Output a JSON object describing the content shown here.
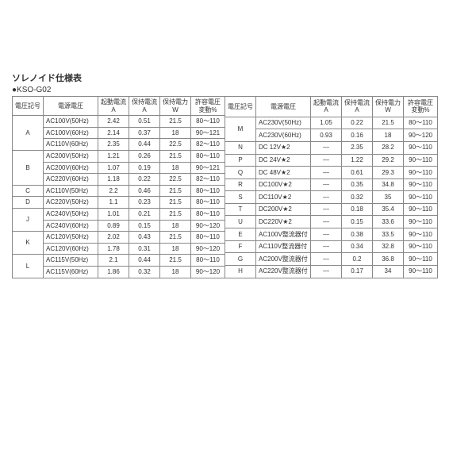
{
  "title": "ソレノイド仕様表",
  "subtitle": "●KSO-G02",
  "headers": {
    "sym": "電圧記号",
    "volt": "電源電圧",
    "start": "起動電流\nA",
    "hold": "保持電流\nA",
    "power": "保持電力\nW",
    "range": "許容電圧\n変動%"
  },
  "left": [
    {
      "sym": "A",
      "rows": [
        [
          "AC100V(50Hz)",
          "2.42",
          "0.51",
          "21.5",
          "80～110"
        ],
        [
          "AC100V(60Hz)",
          "2.14",
          "0.37",
          "18",
          "90～121"
        ],
        [
          "AC110V(60Hz)",
          "2.35",
          "0.44",
          "22.5",
          "82～110"
        ]
      ]
    },
    {
      "sym": "B",
      "rows": [
        [
          "AC200V(50Hz)",
          "1.21",
          "0.26",
          "21.5",
          "80～110"
        ],
        [
          "AC200V(60Hz)",
          "1.07",
          "0.19",
          "18",
          "90～121"
        ],
        [
          "AC220V(60Hz)",
          "1.18",
          "0.22",
          "22.5",
          "82～110"
        ]
      ]
    },
    {
      "sym": "C",
      "rows": [
        [
          "AC110V(50Hz)",
          "2.2",
          "0.46",
          "21.5",
          "80～110"
        ]
      ]
    },
    {
      "sym": "D",
      "rows": [
        [
          "AC220V(50Hz)",
          "1.1",
          "0.23",
          "21.5",
          "80～110"
        ]
      ]
    },
    {
      "sym": "J",
      "rows": [
        [
          "AC240V(50Hz)",
          "1.01",
          "0.21",
          "21.5",
          "80～110"
        ],
        [
          "AC240V(60Hz)",
          "0.89",
          "0.15",
          "18",
          "90～120"
        ]
      ]
    },
    {
      "sym": "K",
      "rows": [
        [
          "AC120V(50Hz)",
          "2.02",
          "0.43",
          "21.5",
          "80～110"
        ],
        [
          "AC120V(60Hz)",
          "1.78",
          "0.31",
          "18",
          "90～120"
        ]
      ]
    },
    {
      "sym": "L",
      "rows": [
        [
          "AC115V(50Hz)",
          "2.1",
          "0.44",
          "21.5",
          "80～110"
        ],
        [
          "AC115V(60Hz)",
          "1.86",
          "0.32",
          "18",
          "90～120"
        ]
      ]
    }
  ],
  "right": [
    {
      "sym": "M",
      "rows": [
        [
          "AC230V(50Hz)",
          "1.05",
          "0.22",
          "21.5",
          "80～110"
        ],
        [
          "AC230V(60Hz)",
          "0.93",
          "0.16",
          "18",
          "90～120"
        ]
      ]
    },
    {
      "sym": "N",
      "rows": [
        [
          "DC 12V★2",
          "—",
          "2.35",
          "28.2",
          "90～110"
        ]
      ]
    },
    {
      "sym": "P",
      "rows": [
        [
          "DC 24V★2",
          "—",
          "1.22",
          "29.2",
          "90～110"
        ]
      ]
    },
    {
      "sym": "Q",
      "rows": [
        [
          "DC 48V★2",
          "—",
          "0.61",
          "29.3",
          "90～110"
        ]
      ]
    },
    {
      "sym": "R",
      "rows": [
        [
          "DC100V★2",
          "—",
          "0.35",
          "34.8",
          "90～110"
        ]
      ]
    },
    {
      "sym": "S",
      "rows": [
        [
          "DC110V★2",
          "—",
          "0.32",
          "35",
          "90～110"
        ]
      ]
    },
    {
      "sym": "T",
      "rows": [
        [
          "DC200V★2",
          "—",
          "0.18",
          "35.4",
          "90～110"
        ]
      ]
    },
    {
      "sym": "U",
      "rows": [
        [
          "DC220V★2",
          "—",
          "0.15",
          "33.6",
          "90～110"
        ]
      ]
    },
    {
      "sym": "E",
      "rows": [
        [
          "AC100V整流器付",
          "—",
          "0.38",
          "33.5",
          "90～110"
        ]
      ]
    },
    {
      "sym": "F",
      "rows": [
        [
          "AC110V整流器付",
          "—",
          "0.34",
          "32.8",
          "90～110"
        ]
      ]
    },
    {
      "sym": "G",
      "rows": [
        [
          "AC200V整流器付",
          "—",
          "0.2",
          "36.8",
          "90～110"
        ]
      ]
    },
    {
      "sym": "H",
      "rows": [
        [
          "AC220V整流器付",
          "—",
          "0.17",
          "34",
          "90～110"
        ]
      ]
    }
  ]
}
